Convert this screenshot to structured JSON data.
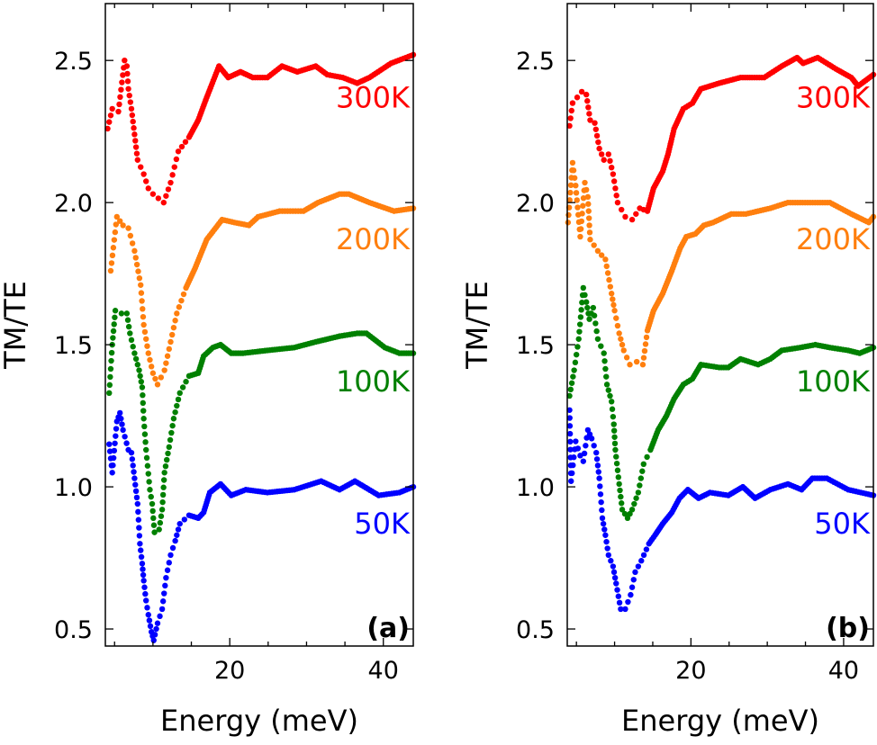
{
  "chart_data": [
    {
      "type": "scatter",
      "panel_label": "(a)",
      "xlabel": "Energy (meV)",
      "ylabel": "TM/TE",
      "xlim": [
        3.8,
        43.9
      ],
      "ylim": [
        0.44,
        2.7
      ],
      "xticks_labeled": [
        20,
        40
      ],
      "xticks_minor": [
        5,
        10,
        15,
        20,
        25,
        30,
        35,
        40
      ],
      "yticks": [
        0.5,
        1.0,
        1.5,
        2.0,
        2.5
      ],
      "ytick_labels": [
        "0.5",
        "1.0",
        "1.5",
        "2.0",
        "2.5"
      ],
      "grid": false,
      "series": [
        {
          "name": "300K",
          "color": "#ff0000",
          "label_y": 2.37,
          "x": [
            4.1,
            4.7,
            5.5,
            6.3,
            6.6,
            6.8,
            7.2,
            7.6,
            8.0,
            8.8,
            9.4,
            10.0,
            11.4,
            12.3,
            13.3,
            14.7,
            15.9,
            17.0,
            18.6,
            19.8,
            21.4,
            23.0,
            24.9,
            26.8,
            28.8,
            31.2,
            32.7,
            34.7,
            36.6,
            38.2,
            41.0,
            43.9
          ],
          "y": [
            2.26,
            2.33,
            2.32,
            2.5,
            2.48,
            2.4,
            2.33,
            2.24,
            2.15,
            2.1,
            2.05,
            2.03,
            2.0,
            2.07,
            2.18,
            2.23,
            2.29,
            2.37,
            2.48,
            2.44,
            2.46,
            2.44,
            2.44,
            2.48,
            2.46,
            2.48,
            2.45,
            2.44,
            2.42,
            2.44,
            2.49,
            2.52
          ]
        },
        {
          "name": "200K",
          "color": "#ff7f0e",
          "label_y": 1.87,
          "x": [
            4.5,
            5.3,
            6.1,
            6.8,
            7.6,
            8.4,
            8.8,
            9.4,
            10.0,
            10.6,
            11.5,
            12.3,
            13.1,
            14.3,
            15.5,
            17.0,
            19.0,
            20.6,
            22.5,
            23.7,
            26.5,
            29.6,
            31.5,
            34.3,
            35.5,
            38.2,
            41.4,
            43.9
          ],
          "y": [
            1.76,
            1.95,
            1.92,
            1.91,
            1.83,
            1.71,
            1.57,
            1.47,
            1.4,
            1.36,
            1.41,
            1.51,
            1.61,
            1.7,
            1.77,
            1.87,
            1.94,
            1.93,
            1.92,
            1.95,
            1.97,
            1.97,
            2.0,
            2.03,
            2.03,
            2.0,
            1.97,
            1.98
          ]
        },
        {
          "name": "100K",
          "color": "#008000",
          "label_y": 1.37,
          "x": [
            4.3,
            4.7,
            5.1,
            5.9,
            6.6,
            7.0,
            7.6,
            8.2,
            8.6,
            8.8,
            9.1,
            9.6,
            9.9,
            10.2,
            10.8,
            11.2,
            11.5,
            12.1,
            12.7,
            13.5,
            14.7,
            15.9,
            16.6,
            17.8,
            18.8,
            20.2,
            21.7,
            24.9,
            28.4,
            31.2,
            34.3,
            36.6,
            37.8,
            40.2,
            42.1,
            43.9
          ],
          "y": [
            1.33,
            1.5,
            1.62,
            1.61,
            1.61,
            1.54,
            1.47,
            1.41,
            1.35,
            1.24,
            1.13,
            0.99,
            0.94,
            0.84,
            0.85,
            0.92,
            1.05,
            1.14,
            1.24,
            1.33,
            1.39,
            1.4,
            1.46,
            1.49,
            1.5,
            1.47,
            1.47,
            1.48,
            1.49,
            1.51,
            1.53,
            1.54,
            1.54,
            1.49,
            1.47,
            1.47
          ]
        },
        {
          "name": "50K",
          "color": "#0000ff",
          "label_y": 0.87,
          "x": [
            4.3,
            4.7,
            5.3,
            5.7,
            6.1,
            6.8,
            7.2,
            7.6,
            8.0,
            8.3,
            8.6,
            8.8,
            9.1,
            9.4,
            9.8,
            10.1,
            10.6,
            11.2,
            11.7,
            12.3,
            12.9,
            13.5,
            14.7,
            15.9,
            16.6,
            17.4,
            18.8,
            20.2,
            22.1,
            24.9,
            28.4,
            31.9,
            34.3,
            36.3,
            39.4,
            42.1,
            43.9
          ],
          "y": [
            1.15,
            1.05,
            1.23,
            1.26,
            1.2,
            1.13,
            1.12,
            1.03,
            0.94,
            0.8,
            0.73,
            0.67,
            0.6,
            0.55,
            0.49,
            0.46,
            0.52,
            0.57,
            0.68,
            0.76,
            0.81,
            0.87,
            0.9,
            0.89,
            0.91,
            0.98,
            1.01,
            0.97,
            0.99,
            0.98,
            0.99,
            1.02,
            0.99,
            1.02,
            0.97,
            0.98,
            1.0
          ]
        }
      ]
    },
    {
      "type": "scatter",
      "panel_label": "(b)",
      "xlabel": "Energy (meV)",
      "ylabel": "TM/TE",
      "xlim": [
        3.8,
        43.9
      ],
      "ylim": [
        0.44,
        2.7
      ],
      "xticks_labeled": [
        20,
        40
      ],
      "xticks_minor": [
        5,
        10,
        15,
        20,
        25,
        30,
        35,
        40
      ],
      "yticks": [
        0.5,
        1.0,
        1.5,
        2.0,
        2.5
      ],
      "ytick_labels": [
        "0.5",
        "1.0",
        "1.5",
        "2.0",
        "2.5"
      ],
      "grid": false,
      "series": [
        {
          "name": "300K",
          "color": "#ff0000",
          "label_y": 2.37,
          "x": [
            4.1,
            4.5,
            5.7,
            6.3,
            6.8,
            7.4,
            8.0,
            8.6,
            9.2,
            9.8,
            10.4,
            11.4,
            12.3,
            13.3,
            14.3,
            15.1,
            16.3,
            17.0,
            17.8,
            19.0,
            20.2,
            21.3,
            23.7,
            26.5,
            28.0,
            29.6,
            31.9,
            33.9,
            34.7,
            36.6,
            39.0,
            41.0,
            41.9,
            43.9
          ],
          "y": [
            2.27,
            2.35,
            2.39,
            2.38,
            2.29,
            2.28,
            2.19,
            2.15,
            2.17,
            2.1,
            2.0,
            1.95,
            1.94,
            1.98,
            1.97,
            2.05,
            2.11,
            2.17,
            2.26,
            2.33,
            2.35,
            2.4,
            2.42,
            2.44,
            2.44,
            2.44,
            2.48,
            2.51,
            2.49,
            2.51,
            2.47,
            2.44,
            2.41,
            2.45
          ]
        },
        {
          "name": "200K",
          "color": "#ff7f0e",
          "label_y": 1.87,
          "x": [
            3.9,
            4.5,
            4.9,
            5.5,
            6.1,
            6.5,
            6.8,
            7.8,
            8.8,
            9.6,
            10.0,
            10.6,
            11.2,
            12.0,
            12.9,
            13.7,
            14.3,
            15.1,
            16.3,
            17.5,
            18.6,
            19.4,
            20.6,
            21.7,
            22.9,
            25.3,
            27.2,
            30.4,
            32.7,
            34.3,
            36.6,
            38.2,
            41.0,
            43.3,
            43.9
          ],
          "y": [
            1.93,
            2.14,
            2.06,
            1.88,
            2.07,
            2.02,
            1.87,
            1.83,
            1.8,
            1.68,
            1.62,
            1.54,
            1.48,
            1.43,
            1.44,
            1.43,
            1.55,
            1.62,
            1.68,
            1.76,
            1.84,
            1.88,
            1.89,
            1.92,
            1.93,
            1.96,
            1.96,
            1.98,
            2.0,
            2.0,
            2.0,
            2.0,
            1.96,
            1.93,
            1.95
          ]
        },
        {
          "name": "100K",
          "color": "#008000",
          "label_y": 1.37,
          "x": [
            4.1,
            4.7,
            5.3,
            5.9,
            6.3,
            6.7,
            7.2,
            7.8,
            8.6,
            9.0,
            9.6,
            9.9,
            10.1,
            10.6,
            11.0,
            11.7,
            12.3,
            13.1,
            13.8,
            14.7,
            15.7,
            16.8,
            17.8,
            19.0,
            20.2,
            21.3,
            23.7,
            24.9,
            26.5,
            28.8,
            30.4,
            31.9,
            34.3,
            36.3,
            38.2,
            40.6,
            42.1,
            43.9
          ],
          "y": [
            1.32,
            1.41,
            1.52,
            1.7,
            1.65,
            1.59,
            1.63,
            1.52,
            1.47,
            1.36,
            1.3,
            1.22,
            1.13,
            1.01,
            0.92,
            0.89,
            0.92,
            0.98,
            1.08,
            1.13,
            1.2,
            1.25,
            1.31,
            1.36,
            1.38,
            1.43,
            1.42,
            1.42,
            1.45,
            1.43,
            1.45,
            1.48,
            1.49,
            1.5,
            1.49,
            1.48,
            1.47,
            1.49
          ]
        },
        {
          "name": "50K",
          "color": "#0000ff",
          "label_y": 0.87,
          "x": [
            4.1,
            4.3,
            4.9,
            5.5,
            5.9,
            6.5,
            7.0,
            7.6,
            8.0,
            8.4,
            8.8,
            9.2,
            9.8,
            10.2,
            10.8,
            11.4,
            12.1,
            12.7,
            13.5,
            14.5,
            15.3,
            16.3,
            17.5,
            18.5,
            19.6,
            21.0,
            22.5,
            24.9,
            26.8,
            28.4,
            30.4,
            32.7,
            34.5,
            35.9,
            37.8,
            40.6,
            43.9
          ],
          "y": [
            1.27,
            1.02,
            1.16,
            1.11,
            1.09,
            1.2,
            1.17,
            1.12,
            1.03,
            0.89,
            0.83,
            0.76,
            0.72,
            0.66,
            0.57,
            0.57,
            0.62,
            0.7,
            0.74,
            0.8,
            0.83,
            0.87,
            0.91,
            0.96,
            0.99,
            0.96,
            0.98,
            0.97,
            1.0,
            0.96,
            0.99,
            1.01,
            0.99,
            1.03,
            1.03,
            0.99,
            0.97
          ]
        }
      ]
    }
  ]
}
